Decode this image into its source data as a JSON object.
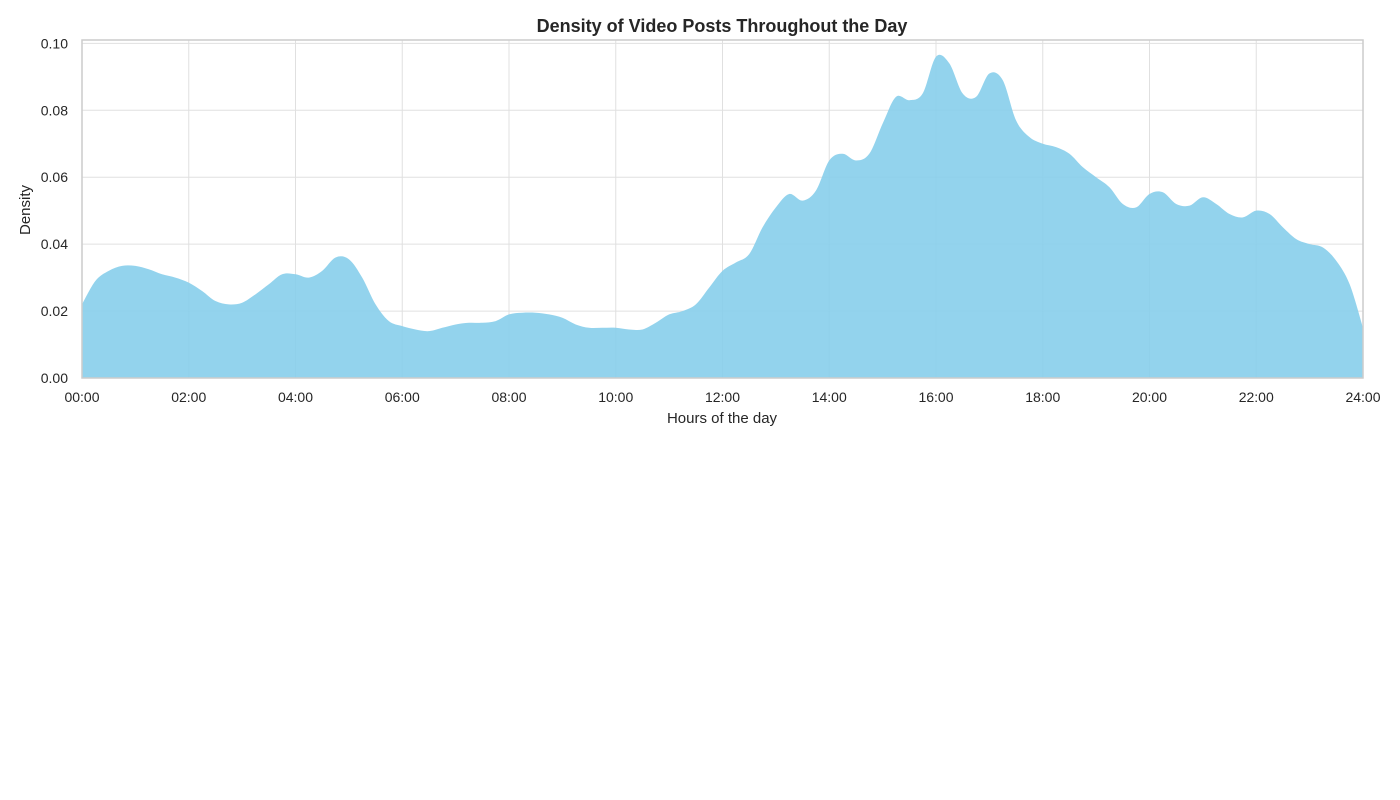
{
  "chart_data": {
    "type": "area",
    "title": "Density of Video Posts Throughout the Day",
    "xlabel": "Hours of the day",
    "ylabel": "Density",
    "x_unit": "hour",
    "xlim": [
      0,
      24
    ],
    "ylim": [
      0,
      0.101
    ],
    "x_ticks": [
      "00:00",
      "02:00",
      "04:00",
      "06:00",
      "08:00",
      "10:00",
      "12:00",
      "14:00",
      "16:00",
      "18:00",
      "20:00",
      "22:00",
      "24:00"
    ],
    "y_ticks": [
      "0.00",
      "0.02",
      "0.04",
      "0.06",
      "0.08",
      "0.10"
    ],
    "grid": true,
    "fill_color": "#87ceeb",
    "series": [
      {
        "x": [
          0.0,
          0.25,
          0.5,
          0.75,
          1.0,
          1.25,
          1.5,
          1.75,
          2.0,
          2.25,
          2.5,
          2.75,
          3.0,
          3.25,
          3.5,
          3.75,
          4.0,
          4.25,
          4.5,
          4.75,
          5.0,
          5.25,
          5.5,
          5.75,
          6.0,
          6.25,
          6.5,
          6.75,
          7.0,
          7.25,
          7.5,
          7.75,
          8.0,
          8.25,
          8.5,
          8.75,
          9.0,
          9.25,
          9.5,
          9.75,
          10.0,
          10.25,
          10.5,
          10.75,
          11.0,
          11.25,
          11.5,
          11.75,
          12.0,
          12.25,
          12.5,
          12.75,
          13.0,
          13.25,
          13.5,
          13.75,
          14.0,
          14.25,
          14.5,
          14.75,
          15.0,
          15.25,
          15.5,
          15.75,
          16.0,
          16.25,
          16.5,
          16.75,
          17.0,
          17.25,
          17.5,
          17.75,
          18.0,
          18.25,
          18.5,
          18.75,
          19.0,
          19.25,
          19.5,
          19.75,
          20.0,
          20.25,
          20.5,
          20.75,
          21.0,
          21.25,
          21.5,
          21.75,
          22.0,
          22.25,
          22.5,
          22.75,
          23.0,
          23.25,
          23.5,
          23.75,
          24.0
        ],
        "y": [
          0.022,
          0.029,
          0.032,
          0.0335,
          0.0335,
          0.0325,
          0.031,
          0.03,
          0.0285,
          0.026,
          0.023,
          0.022,
          0.0225,
          0.025,
          0.028,
          0.031,
          0.031,
          0.03,
          0.032,
          0.036,
          0.0355,
          0.03,
          0.022,
          0.017,
          0.0155,
          0.0145,
          0.014,
          0.015,
          0.016,
          0.0165,
          0.0165,
          0.017,
          0.019,
          0.0195,
          0.0195,
          0.019,
          0.018,
          0.016,
          0.015,
          0.015,
          0.015,
          0.0145,
          0.0145,
          0.0165,
          0.019,
          0.02,
          0.022,
          0.027,
          0.032,
          0.0345,
          0.037,
          0.045,
          0.051,
          0.055,
          0.053,
          0.056,
          0.065,
          0.067,
          0.065,
          0.067,
          0.076,
          0.084,
          0.083,
          0.085,
          0.096,
          0.094,
          0.085,
          0.084,
          0.091,
          0.089,
          0.077,
          0.072,
          0.07,
          0.069,
          0.067,
          0.063,
          0.06,
          0.057,
          0.052,
          0.051,
          0.055,
          0.0555,
          0.052,
          0.0515,
          0.054,
          0.052,
          0.049,
          0.048,
          0.05,
          0.049,
          0.045,
          0.0415,
          0.04,
          0.039,
          0.035,
          0.028,
          0.015
        ]
      }
    ]
  }
}
